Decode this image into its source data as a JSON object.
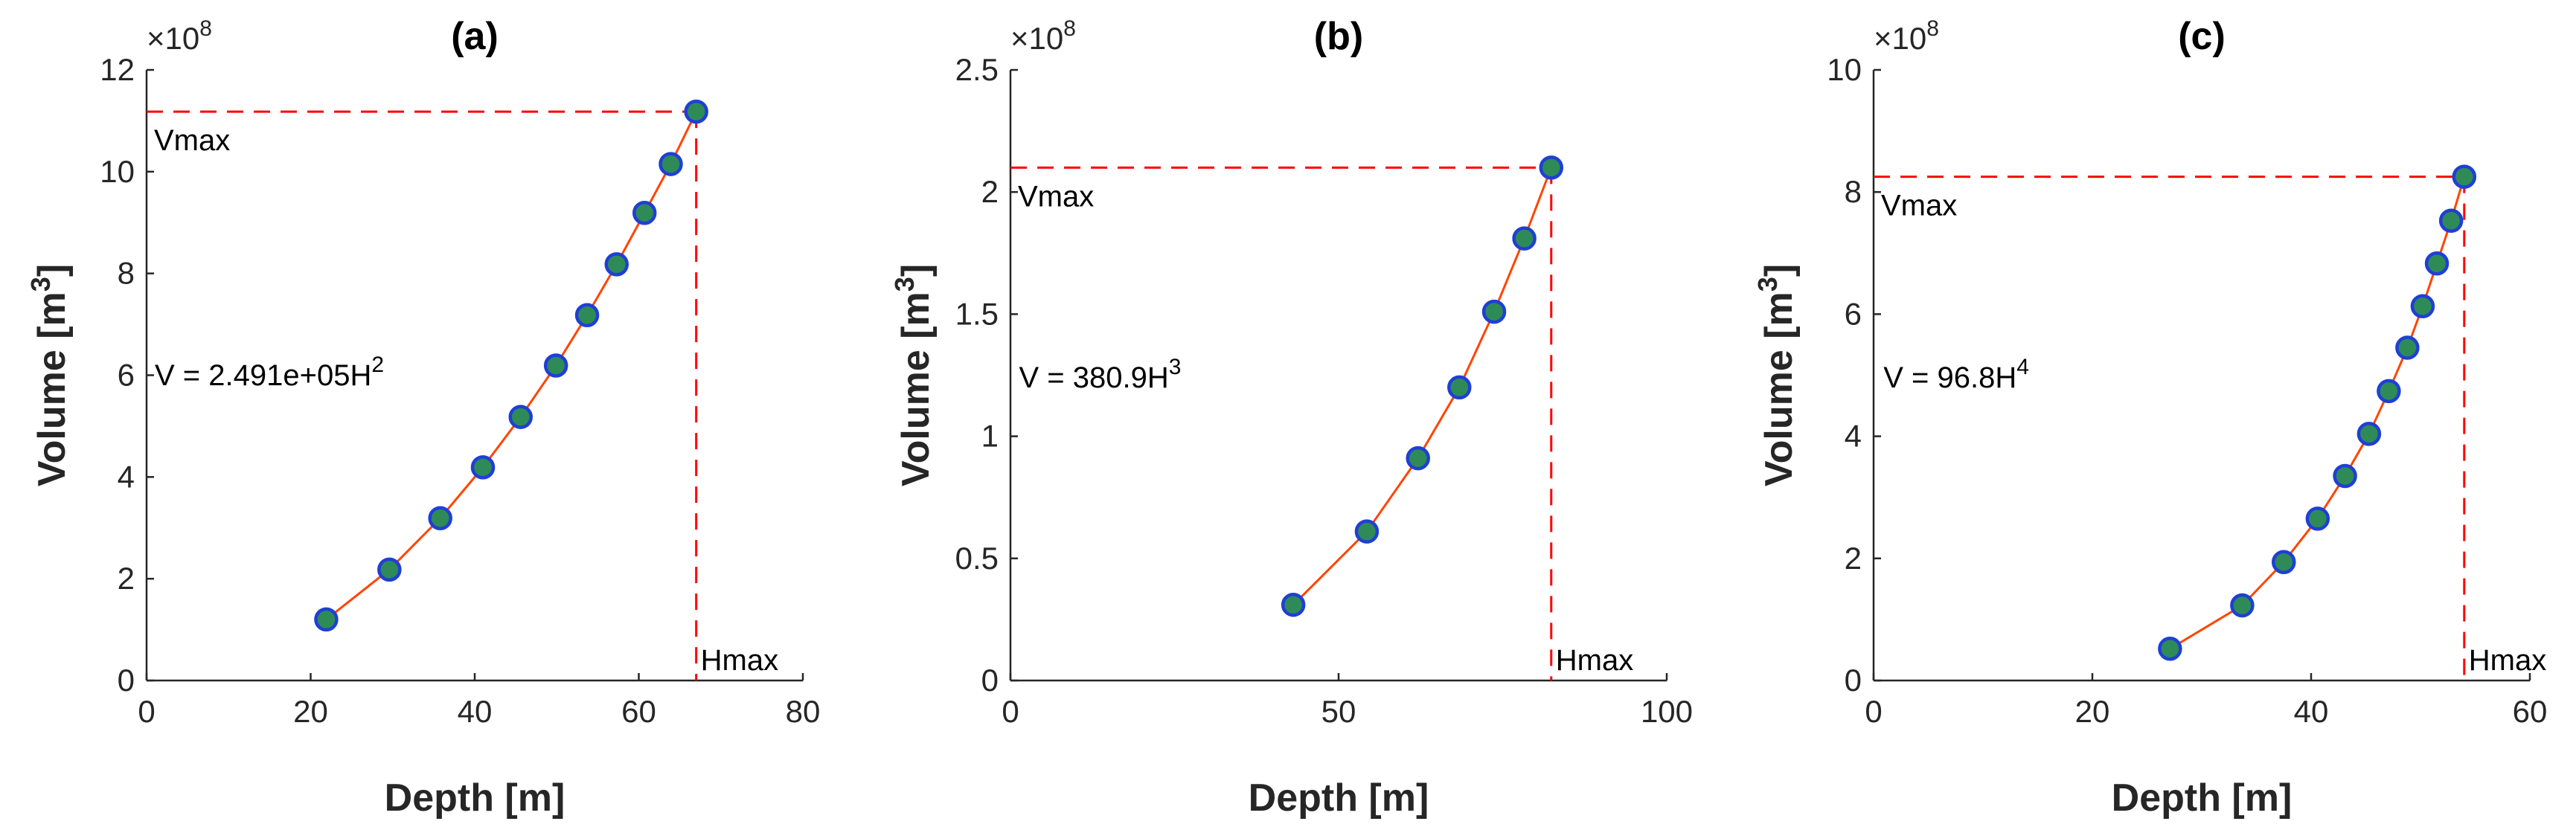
{
  "colors": {
    "axis": "#262626",
    "line": "#ff4500",
    "marker_fill": "#2e8b57",
    "marker_edge": "#1f3fd6",
    "ref_line": "#ff0000"
  },
  "chart_data": [
    {
      "type": "line",
      "panel_label": "(a)",
      "xlabel": "Depth [m]",
      "ylabel_main": "Volume [m",
      "ylabel_sup": "3",
      "ylabel_close": "]",
      "xlim": [
        0,
        80
      ],
      "ylim": [
        0,
        12
      ],
      "xticks": [
        0,
        20,
        40,
        60,
        80
      ],
      "yticks": [
        0,
        2,
        4,
        6,
        8,
        10,
        12
      ],
      "x_tick_labels": [
        "0",
        "20",
        "40",
        "60",
        "80"
      ],
      "y_tick_labels": [
        "0",
        "2",
        "4",
        "6",
        "8",
        "10",
        "12"
      ],
      "y_multiplier_prefix": "×10",
      "y_multiplier_exp": "8",
      "x": [
        21.9,
        29.6,
        35.8,
        41.0,
        45.6,
        49.9,
        53.7,
        57.3,
        60.7,
        63.9,
        67.0
      ],
      "y": [
        1.2,
        2.18,
        3.19,
        4.19,
        5.18,
        6.19,
        7.18,
        8.18,
        9.19,
        10.15,
        11.18
      ],
      "vmax": 11.18,
      "hmax": 67.0,
      "vmax_label": "Vmax",
      "hmax_label": "Hmax",
      "equation_main": "V = 2.491e+05H",
      "equation_exp": "2",
      "equation_x": 1,
      "equation_y": 5.8
    },
    {
      "type": "line",
      "panel_label": "(b)",
      "xlabel": "Depth [m]",
      "ylabel_main": "Volume [m",
      "ylabel_sup": "3",
      "ylabel_close": "]",
      "xlim": [
        0,
        100
      ],
      "ylim": [
        0,
        2.5
      ],
      "xticks": [
        0,
        50,
        100
      ],
      "yticks": [
        0,
        0.5,
        1,
        1.5,
        2,
        2.5
      ],
      "x_tick_labels": [
        "0",
        "50",
        "100"
      ],
      "y_tick_labels": [
        "0",
        "0.5",
        "1",
        "1.5",
        "2",
        "2.5"
      ],
      "y_multiplier_prefix": "×10",
      "y_multiplier_exp": "8",
      "x": [
        43.1,
        54.3,
        62.1,
        68.4,
        73.7,
        78.3,
        82.4
      ],
      "y": [
        0.31,
        0.61,
        0.91,
        1.2,
        1.51,
        1.81,
        2.1
      ],
      "vmax": 2.1,
      "hmax": 82.4,
      "vmax_label": "Vmax",
      "hmax_label": "Hmax",
      "equation_main": "V = 380.9H",
      "equation_exp": "3",
      "equation_x": 1.3,
      "equation_y": 1.2
    },
    {
      "type": "line",
      "panel_label": "(c)",
      "xlabel": "Depth [m]",
      "ylabel_main": "Volume [m",
      "ylabel_sup": "3",
      "ylabel_close": "]",
      "xlim": [
        0,
        60
      ],
      "ylim": [
        0,
        10
      ],
      "xticks": [
        0,
        20,
        40,
        60
      ],
      "yticks": [
        0,
        2,
        4,
        6,
        8,
        10
      ],
      "x_tick_labels": [
        "0",
        "20",
        "40",
        "60"
      ],
      "y_tick_labels": [
        "0",
        "2",
        "4",
        "6",
        "8",
        "10"
      ],
      "y_multiplier_prefix": "×10",
      "y_multiplier_exp": "8",
      "x": [
        27.1,
        33.7,
        37.5,
        40.6,
        43.1,
        45.3,
        47.1,
        48.8,
        50.2,
        51.5,
        52.8,
        54.0
      ],
      "y": [
        0.52,
        1.23,
        1.94,
        2.65,
        3.35,
        4.04,
        4.74,
        5.45,
        6.13,
        6.83,
        7.53,
        8.25
      ],
      "vmax": 8.25,
      "hmax": 54.0,
      "vmax_label": "Vmax",
      "hmax_label": "Hmax",
      "equation_main": "V = 96.8H",
      "equation_exp": "4",
      "equation_x": 0.9,
      "equation_y": 4.8
    }
  ]
}
